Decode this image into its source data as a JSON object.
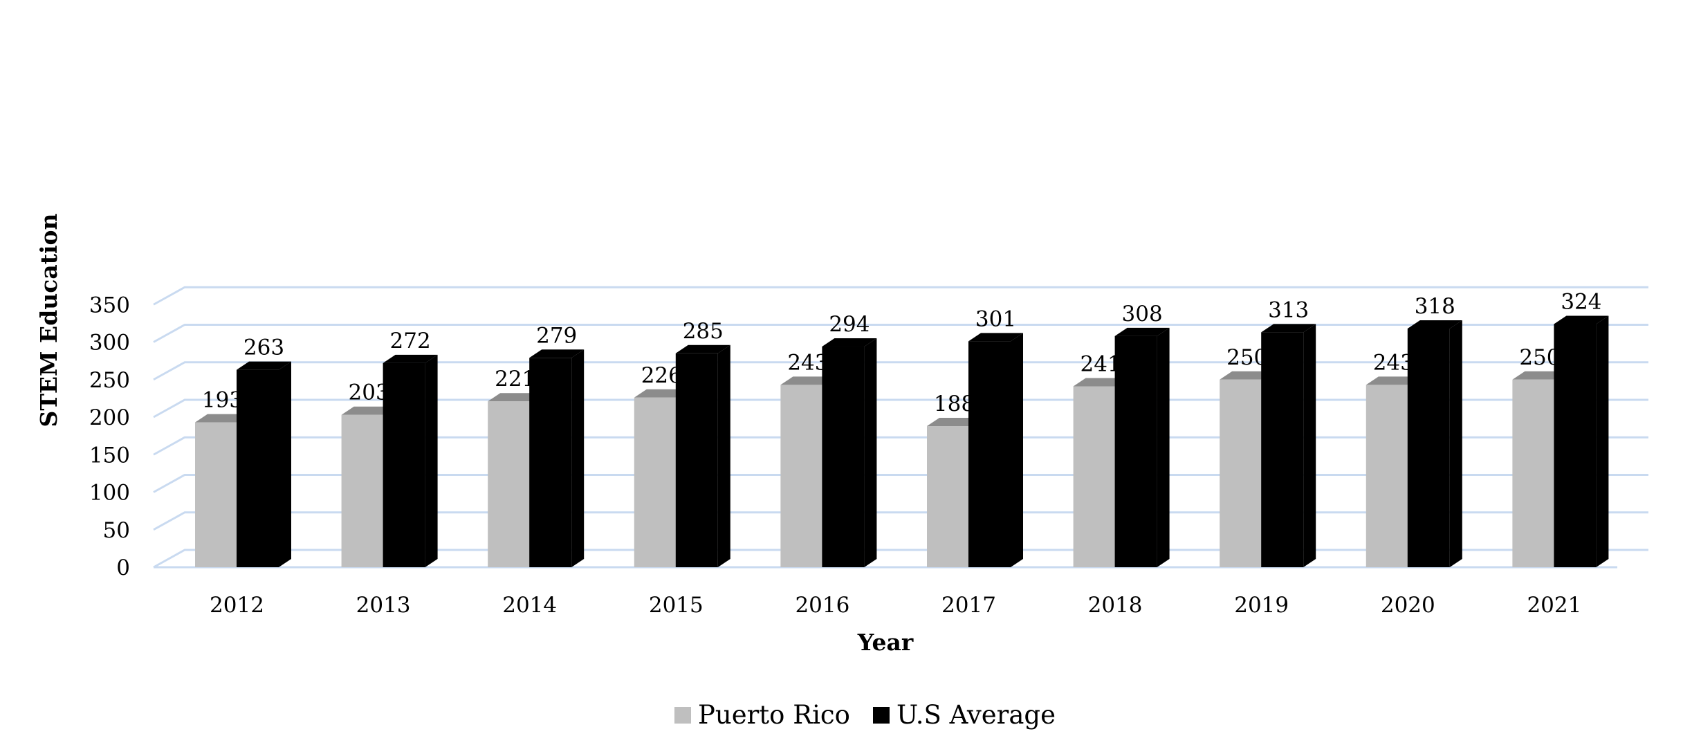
{
  "chart_data": {
    "type": "bar",
    "title": "",
    "xlabel": "Year",
    "ylabel": "STEM Education",
    "ylim": [
      0,
      350
    ],
    "yticks": [
      0,
      50,
      100,
      150,
      200,
      250,
      300,
      350
    ],
    "categories": [
      "2012",
      "2013",
      "2014",
      "2015",
      "2016",
      "2017",
      "2018",
      "2019",
      "2020",
      "2021"
    ],
    "series": [
      {
        "name": "Puerto Rico",
        "color": "#bfbfbf",
        "top_color": "#8c8c8c",
        "values": [
          193,
          203,
          221,
          226,
          243,
          188,
          241,
          250,
          243,
          250
        ]
      },
      {
        "name": "U.S Average",
        "color": "#000000",
        "top_color": "#000000",
        "values": [
          263,
          272,
          279,
          285,
          294,
          301,
          308,
          313,
          318,
          324
        ]
      }
    ],
    "grid": true,
    "gridline_color": "#c9daf0",
    "legend_position": "bottom-center",
    "bar_style": "3d-column",
    "data_labels": true
  }
}
